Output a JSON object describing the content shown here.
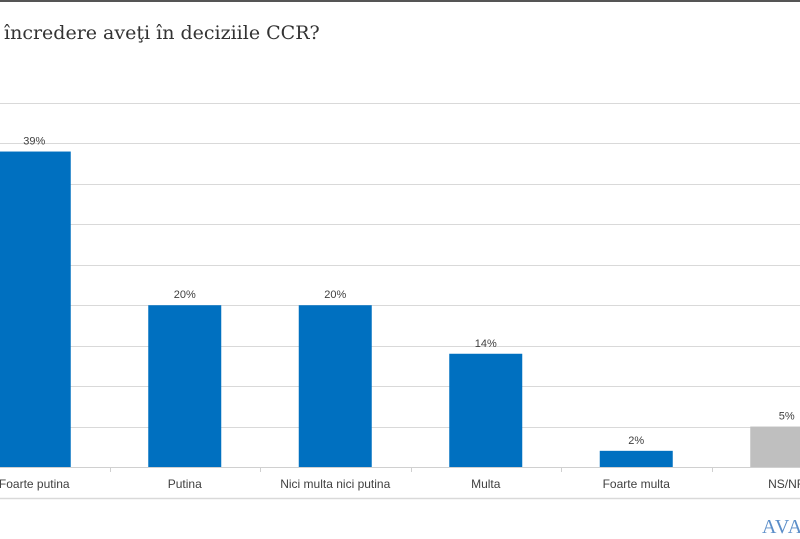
{
  "title": "încredere aveţi în deciziile CCR?",
  "logo_text": "AVAN",
  "colors": {
    "primary": "#0070c0",
    "other": "#bfbfbf",
    "grid": "#d9d9d9"
  },
  "chart_data": {
    "type": "bar",
    "title": "încredere aveţi în deciziile CCR?",
    "categories": [
      "Foarte putina",
      "Putina",
      "Nici multa nici putina",
      "Multa",
      "Foarte multa",
      "NS/NR"
    ],
    "values": [
      39,
      20,
      20,
      14,
      2,
      5
    ],
    "data_labels": [
      "39%",
      "20%",
      "20%",
      "14%",
      "2%",
      "5%"
    ],
    "bar_colors": [
      "#0070c0",
      "#0070c0",
      "#0070c0",
      "#0070c0",
      "#0070c0",
      "#bfbfbf"
    ],
    "ylim": [
      0,
      45
    ],
    "grid_step": 5,
    "grid": true,
    "xlabel": "",
    "ylabel": ""
  }
}
